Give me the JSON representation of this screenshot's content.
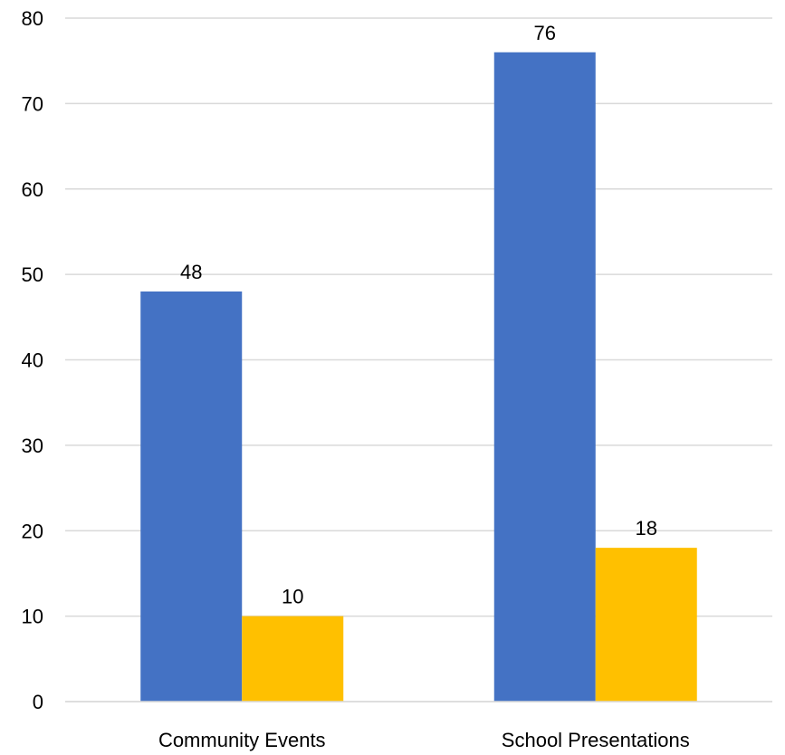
{
  "chart_data": {
    "type": "bar",
    "categories": [
      "Community Events",
      "School Presentations"
    ],
    "series": [
      {
        "values": [
          48,
          76
        ],
        "color": "#4472C4"
      },
      {
        "values": [
          10,
          18
        ],
        "color": "#FFC000"
      }
    ],
    "ylim": [
      0,
      80
    ],
    "y_ticks": [
      0,
      10,
      20,
      30,
      40,
      50,
      60,
      70,
      80
    ],
    "grid": true,
    "legend": "none",
    "gridline_color": "#D9D9D9"
  }
}
